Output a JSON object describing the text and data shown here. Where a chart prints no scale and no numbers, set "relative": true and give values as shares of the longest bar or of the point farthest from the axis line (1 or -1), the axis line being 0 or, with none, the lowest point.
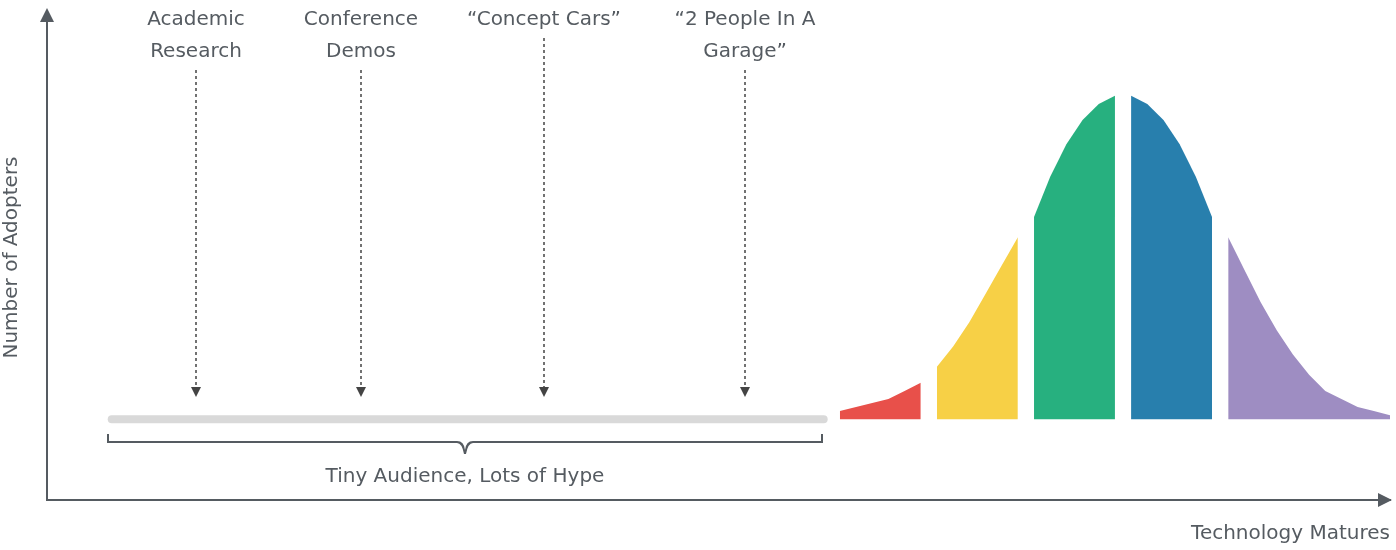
{
  "chart_data": {
    "type": "area",
    "relative": true,
    "xlabel": "Technology Matures",
    "ylabel": "Number of Adopters",
    "annotations": [
      "Academic Research",
      "Conference Demos",
      "“Concept Cars”",
      "“2 People In A Garage”",
      "Tiny Audience, Lots of Hype"
    ],
    "categories": [
      null,
      null,
      null,
      null,
      null,
      null,
      null,
      null,
      null,
      null,
      null,
      null,
      null,
      null,
      null,
      null,
      null,
      null,
      null,
      null,
      null,
      null,
      null,
      null,
      null,
      null,
      null,
      null,
      null,
      null,
      null,
      null,
      null,
      null,
      null,
      null,
      null,
      null,
      null,
      null,
      null,
      null,
      null,
      null,
      null,
      null,
      null,
      null,
      null,
      null,
      null,
      null,
      null,
      null,
      null,
      null,
      null,
      null,
      null,
      null,
      null,
      null,
      null,
      null,
      null,
      null,
      null,
      null,
      null,
      null,
      null,
      null,
      null,
      null,
      null,
      null,
      null,
      null,
      null,
      null,
      null,
      null,
      null,
      null
    ],
    "series": [
      {
        "type": "line",
        "color": "#d9d9d9",
        "values": [
          null,
          null,
          null,
          null,
          0.2,
          0.2,
          0.2,
          0.2,
          0.2,
          0.2,
          0.2,
          0.2,
          0.2,
          0.2,
          0.2,
          0.2,
          0.2,
          0.2,
          0.2,
          0.2,
          0.2,
          0.2,
          0.2,
          0.2,
          0.2,
          0.2,
          0.2,
          0.2,
          0.2,
          0.2,
          0.2,
          0.2,
          0.2,
          0.2,
          0.2,
          0.2,
          0.2,
          0.2,
          0.2,
          0.2,
          0.2,
          0.2,
          0.2,
          0.2,
          0.2,
          0.2,
          0.2,
          0.2,
          0.2,
          null,
          null,
          null,
          null,
          null,
          null,
          null,
          null,
          null,
          null,
          null,
          null,
          null,
          null,
          null,
          null,
          null,
          null,
          null,
          null,
          null,
          null,
          null,
          null,
          null,
          null,
          null,
          null,
          null,
          null,
          null,
          null,
          null,
          null,
          null
        ]
      },
      {
        "color": "#e8504a",
        "values": [
          null,
          null,
          null,
          null,
          null,
          null,
          null,
          null,
          null,
          null,
          null,
          null,
          null,
          null,
          null,
          null,
          null,
          null,
          null,
          null,
          null,
          null,
          null,
          null,
          null,
          null,
          null,
          null,
          null,
          null,
          null,
          null,
          null,
          null,
          null,
          null,
          null,
          null,
          null,
          null,
          null,
          null,
          null,
          null,
          null,
          null,
          null,
          null,
          null,
          0.22,
          0.23,
          0.24,
          0.25,
          0.27,
          0.29,
          null,
          null,
          null,
          null,
          null,
          null,
          null,
          null,
          null,
          null,
          null,
          null,
          null,
          null,
          null,
          null,
          null,
          null,
          null,
          null,
          null,
          null,
          null,
          null,
          null,
          null,
          null,
          null,
          null
        ]
      },
      {
        "color": "#f7d046",
        "values": [
          null,
          null,
          null,
          null,
          null,
          null,
          null,
          null,
          null,
          null,
          null,
          null,
          null,
          null,
          null,
          null,
          null,
          null,
          null,
          null,
          null,
          null,
          null,
          null,
          null,
          null,
          null,
          null,
          null,
          null,
          null,
          null,
          null,
          null,
          null,
          null,
          null,
          null,
          null,
          null,
          null,
          null,
          null,
          null,
          null,
          null,
          null,
          null,
          null,
          null,
          null,
          null,
          null,
          null,
          null,
          0.33,
          0.38,
          0.44,
          0.51,
          0.58,
          0.65,
          null,
          null,
          null,
          null,
          null,
          null,
          null,
          null,
          null,
          null,
          null,
          null,
          null,
          null,
          null,
          null,
          null,
          null,
          null,
          null,
          null,
          null,
          null
        ]
      },
      {
        "color": "#27b07f",
        "values": [
          null,
          null,
          null,
          null,
          null,
          null,
          null,
          null,
          null,
          null,
          null,
          null,
          null,
          null,
          null,
          null,
          null,
          null,
          null,
          null,
          null,
          null,
          null,
          null,
          null,
          null,
          null,
          null,
          null,
          null,
          null,
          null,
          null,
          null,
          null,
          null,
          null,
          null,
          null,
          null,
          null,
          null,
          null,
          null,
          null,
          null,
          null,
          null,
          null,
          null,
          null,
          null,
          null,
          null,
          null,
          null,
          null,
          null,
          null,
          null,
          null,
          0.7,
          0.8,
          0.88,
          0.94,
          0.98,
          1,
          null,
          null,
          null,
          null,
          null,
          null,
          null,
          null,
          null,
          null,
          null,
          null,
          null,
          null,
          null,
          null,
          null
        ]
      },
      {
        "color": "#287fad",
        "values": [
          null,
          null,
          null,
          null,
          null,
          null,
          null,
          null,
          null,
          null,
          null,
          null,
          null,
          null,
          null,
          null,
          null,
          null,
          null,
          null,
          null,
          null,
          null,
          null,
          null,
          null,
          null,
          null,
          null,
          null,
          null,
          null,
          null,
          null,
          null,
          null,
          null,
          null,
          null,
          null,
          null,
          null,
          null,
          null,
          null,
          null,
          null,
          null,
          null,
          null,
          null,
          null,
          null,
          null,
          null,
          null,
          null,
          null,
          null,
          null,
          null,
          null,
          null,
          null,
          null,
          null,
          null,
          1,
          0.98,
          0.94,
          0.88,
          0.8,
          0.7,
          null,
          null,
          null,
          null,
          null,
          null,
          null,
          null,
          null,
          null,
          null
        ]
      },
      {
        "color": "#9e8dc2",
        "values": [
          null,
          null,
          null,
          null,
          null,
          null,
          null,
          null,
          null,
          null,
          null,
          null,
          null,
          null,
          null,
          null,
          null,
          null,
          null,
          null,
          null,
          null,
          null,
          null,
          null,
          null,
          null,
          null,
          null,
          null,
          null,
          null,
          null,
          null,
          null,
          null,
          null,
          null,
          null,
          null,
          null,
          null,
          null,
          null,
          null,
          null,
          null,
          null,
          null,
          null,
          null,
          null,
          null,
          null,
          null,
          null,
          null,
          null,
          null,
          null,
          null,
          null,
          null,
          null,
          null,
          null,
          null,
          null,
          null,
          null,
          null,
          null,
          null,
          0.65,
          0.57,
          0.49,
          0.42,
          0.36,
          0.31,
          0.27,
          0.25,
          0.23,
          0.22,
          0.21
        ]
      }
    ],
    "legend": false,
    "grid": false,
    "marker": "none"
  }
}
